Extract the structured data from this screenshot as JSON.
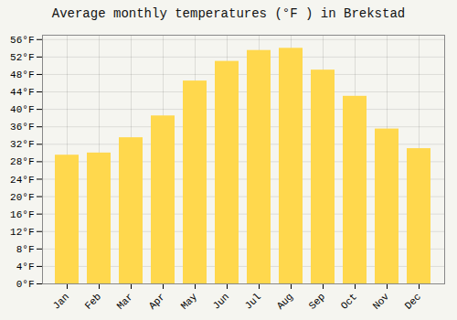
{
  "chart_data": {
    "type": "bar",
    "title": "Average monthly temperatures (°F ) in Brekstad",
    "categories": [
      "Jan",
      "Feb",
      "Mar",
      "Apr",
      "May",
      "Jun",
      "Jul",
      "Aug",
      "Sep",
      "Oct",
      "Nov",
      "Dec"
    ],
    "values": [
      29.5,
      30.0,
      33.5,
      38.5,
      46.5,
      51.0,
      53.5,
      54.0,
      49.0,
      43.0,
      35.5,
      31.0
    ],
    "color": "#FFD84D",
    "ylim": [
      0,
      57
    ],
    "yticks": [
      {
        "value": 0,
        "label": "0°F"
      },
      {
        "value": 4,
        "label": "4°F"
      },
      {
        "value": 8,
        "label": "8°F"
      },
      {
        "value": 12,
        "label": "12°F"
      },
      {
        "value": 16,
        "label": "16°F"
      },
      {
        "value": 20,
        "label": "20°F"
      },
      {
        "value": 24,
        "label": "24°F"
      },
      {
        "value": 28,
        "label": "28°F"
      },
      {
        "value": 32,
        "label": "32°F"
      },
      {
        "value": 36,
        "label": "36°F"
      },
      {
        "value": 40,
        "label": "40°F"
      },
      {
        "value": 44,
        "label": "44°F"
      },
      {
        "value": 48,
        "label": "48°F"
      },
      {
        "value": 52,
        "label": "52°F"
      },
      {
        "value": 56,
        "label": "56°F"
      }
    ],
    "grid": true
  }
}
